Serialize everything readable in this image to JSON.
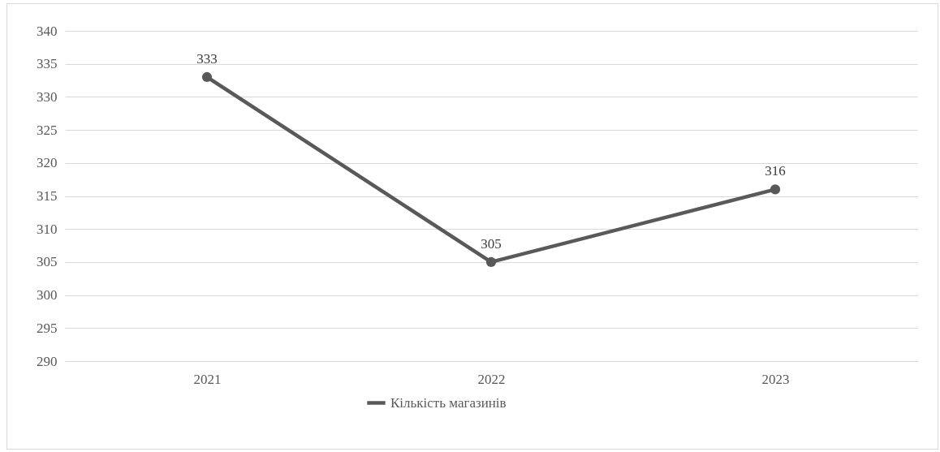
{
  "chart_data": {
    "type": "line",
    "categories": [
      "2021",
      "2022",
      "2023"
    ],
    "series": [
      {
        "name": "Кількість магазинів",
        "color": "#595959",
        "values": [
          333,
          305,
          316
        ]
      }
    ],
    "ylim": [
      290,
      340
    ],
    "yticks": [
      290,
      295,
      300,
      305,
      310,
      315,
      320,
      325,
      330,
      335,
      340
    ],
    "grid": "y",
    "legend": "bottom",
    "marker": "circle",
    "line_style": "solid",
    "data_labels": true
  }
}
